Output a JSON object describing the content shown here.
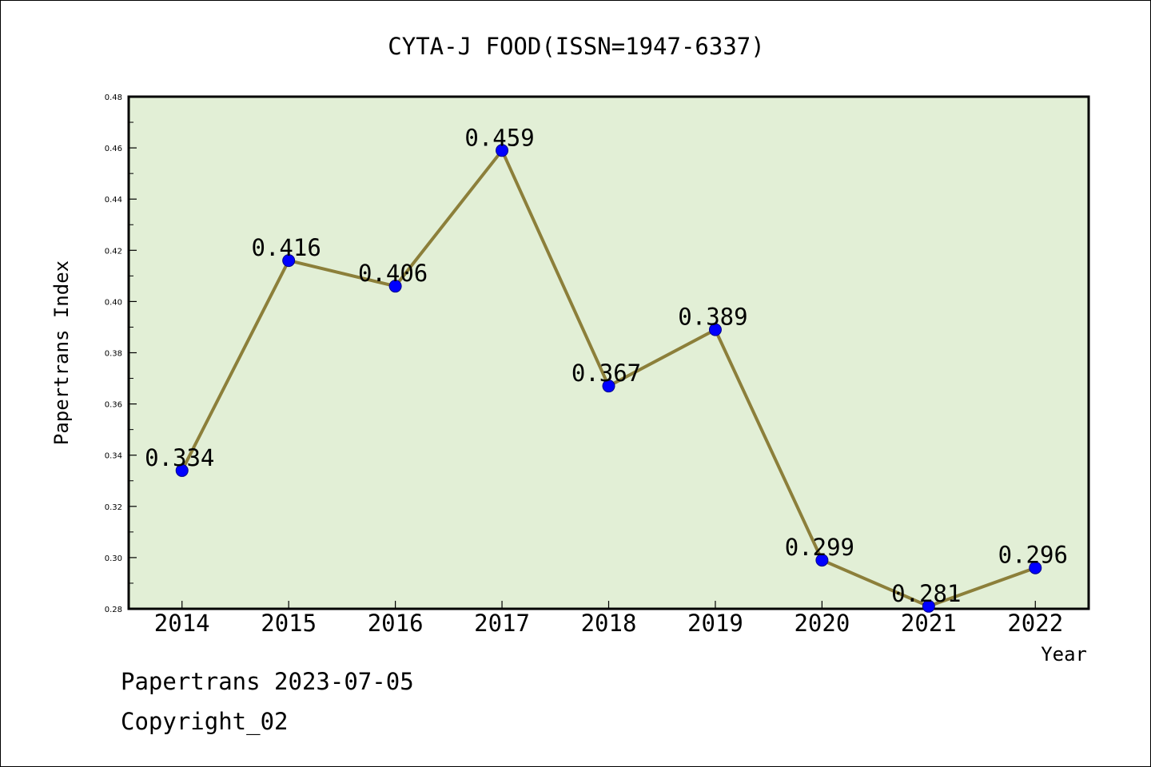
{
  "chart_data": {
    "type": "line",
    "title": "CYTA-J FOOD(ISSN=1947-6337)",
    "xlabel": "Year",
    "ylabel": "Papertrans Index",
    "categories": [
      "2014",
      "2015",
      "2016",
      "2017",
      "2018",
      "2019",
      "2020",
      "2021",
      "2022"
    ],
    "values": [
      0.334,
      0.416,
      0.406,
      0.459,
      0.367,
      0.389,
      0.299,
      0.281,
      0.296
    ],
    "data_labels": [
      "0.334",
      "0.416",
      "0.406",
      "0.459",
      "0.367",
      "0.389",
      "0.299",
      "0.281",
      "0.296"
    ],
    "ylim": [
      0.28,
      0.48
    ],
    "yticks": [
      0.28,
      0.3,
      0.32,
      0.34,
      0.36,
      0.38,
      0.4,
      0.42,
      0.44,
      0.46,
      0.48
    ],
    "ytick_labels": [
      "0.28",
      "0.30",
      "0.32",
      "0.34",
      "0.36",
      "0.38",
      "0.40",
      "0.42",
      "0.44",
      "0.46",
      "0.48"
    ],
    "grid": false,
    "legend": "none",
    "colors": {
      "plot_background": "#e2efd6",
      "line": "#8c7f3a",
      "marker": "#0000ff",
      "marker_edge": "#00008b"
    }
  },
  "footer": {
    "line1": "Papertrans 2023-07-05",
    "line2": "Copyright_02"
  }
}
